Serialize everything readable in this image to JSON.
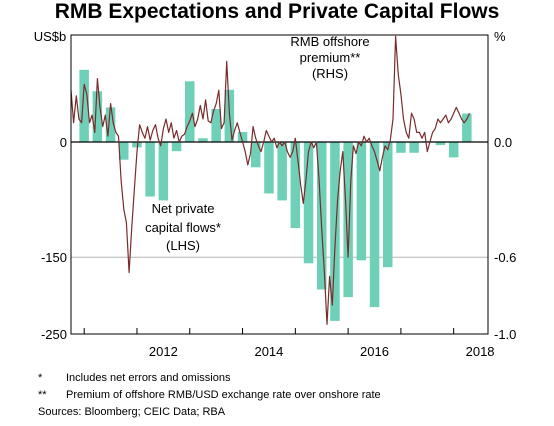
{
  "title": "RMB Expectations and Private Capital Flows",
  "colors": {
    "bars": "#6fd0b8",
    "line": "#7a2b2b",
    "axis": "#000000",
    "grid": "#b5b5b5",
    "annotation_line": "#7a2b2b",
    "annotation_bar": "#56c7ad"
  },
  "annotations": {
    "rmb_line1": "RMB offshore",
    "rmb_line2": "premium**",
    "rmb_line3": "(RHS)",
    "flows_line1": "Net private",
    "flows_line2": "capital flows*",
    "flows_line3": "(LHS)"
  },
  "footnotes": [
    {
      "mark": "*",
      "text": "Includes net errors and omissions"
    },
    {
      "mark": "**",
      "text": "Premium of offshore RMB/USD exchange rate over onshore rate"
    }
  ],
  "sources": "Sources:   Bloomberg; CEIC Data; RBA",
  "chart_data": {
    "type": "bar",
    "title": "RMB Expectations and Private Capital Flows",
    "left_axis": {
      "unit": "US$b",
      "ylim": [
        -250,
        100
      ],
      "ticks": [
        -250,
        -150,
        0
      ],
      "tick_labels": [
        "-250",
        "-150",
        "0"
      ]
    },
    "right_axis": {
      "unit": "%",
      "ylim": [
        -1.0,
        0.8
      ],
      "ticks": [
        -1.0,
        -0.6,
        0.0
      ],
      "tick_labels": [
        "-1.0",
        "-0.6",
        "0.0"
      ]
    },
    "x_axis": {
      "xlim": [
        2010.75,
        2018.65
      ],
      "ticks": [
        2012,
        2014,
        2016,
        2018
      ],
      "tick_labels": [
        "2012",
        "2014",
        "2016",
        "2018"
      ],
      "minor_ticks": [
        2011,
        2012,
        2013,
        2014,
        2015,
        2016,
        2017,
        2018
      ]
    },
    "gridlines": [
      -250,
      -150,
      0
    ],
    "series": [
      {
        "name": "Net private capital flows",
        "axis": "left",
        "kind": "bar",
        "x": [
          2011.0,
          2011.25,
          2011.5,
          2011.75,
          2012.0,
          2012.25,
          2012.5,
          2012.75,
          2013.0,
          2013.25,
          2013.5,
          2013.75,
          2014.0,
          2014.25,
          2014.5,
          2014.75,
          2015.0,
          2015.25,
          2015.5,
          2015.75,
          2016.0,
          2016.25,
          2016.5,
          2016.75,
          2017.0,
          2017.25,
          2017.5,
          2017.75,
          2018.0,
          2018.25
        ],
        "values": [
          94,
          66,
          45,
          -23,
          -7,
          -71,
          -76,
          -12,
          79,
          5,
          43,
          68,
          13,
          -33,
          -67,
          -76,
          -112,
          -158,
          -192,
          -233,
          -202,
          -154,
          -215,
          -163,
          -14,
          -14,
          1,
          -4,
          -20,
          37
        ]
      },
      {
        "name": "RMB offshore premium",
        "axis": "right",
        "kind": "line",
        "x": [
          2010.75,
          2010.8,
          2010.85,
          2010.9,
          2010.95,
          2011.0,
          2011.05,
          2011.1,
          2011.15,
          2011.2,
          2011.25,
          2011.3,
          2011.35,
          2011.4,
          2011.45,
          2011.5,
          2011.55,
          2011.6,
          2011.65,
          2011.7,
          2011.75,
          2011.8,
          2011.85,
          2011.9,
          2011.95,
          2012.0,
          2012.05,
          2012.1,
          2012.15,
          2012.2,
          2012.25,
          2012.3,
          2012.35,
          2012.4,
          2012.45,
          2012.5,
          2012.55,
          2012.6,
          2012.65,
          2012.7,
          2012.75,
          2012.8,
          2012.85,
          2012.9,
          2012.95,
          2013.0,
          2013.05,
          2013.1,
          2013.15,
          2013.2,
          2013.25,
          2013.3,
          2013.35,
          2013.4,
          2013.45,
          2013.5,
          2013.55,
          2013.6,
          2013.65,
          2013.7,
          2013.75,
          2013.8,
          2013.85,
          2013.9,
          2013.95,
          2014.0,
          2014.05,
          2014.1,
          2014.15,
          2014.2,
          2014.25,
          2014.3,
          2014.35,
          2014.4,
          2014.45,
          2014.5,
          2014.55,
          2014.6,
          2014.65,
          2014.7,
          2014.75,
          2014.8,
          2014.85,
          2014.9,
          2014.95,
          2015.0,
          2015.05,
          2015.1,
          2015.15,
          2015.2,
          2015.25,
          2015.3,
          2015.35,
          2015.4,
          2015.45,
          2015.5,
          2015.55,
          2015.6,
          2015.65,
          2015.7,
          2015.75,
          2015.8,
          2015.85,
          2015.9,
          2015.95,
          2016.0,
          2016.05,
          2016.1,
          2016.15,
          2016.2,
          2016.25,
          2016.3,
          2016.35,
          2016.4,
          2016.45,
          2016.5,
          2016.55,
          2016.6,
          2016.65,
          2016.7,
          2016.75,
          2016.8,
          2016.85,
          2016.9,
          2016.95,
          2017.0,
          2017.05,
          2017.1,
          2017.15,
          2017.2,
          2017.25,
          2017.3,
          2017.35,
          2017.4,
          2017.45,
          2017.5,
          2017.55,
          2017.6,
          2017.65,
          2017.7,
          2017.75,
          2017.8,
          2017.85,
          2017.9,
          2017.95,
          2018.0,
          2018.05,
          2018.1,
          2018.15,
          2018.2,
          2018.25,
          2018.3
        ],
        "values": [
          0.27,
          0.1,
          0.24,
          0.12,
          0.1,
          0.3,
          0.25,
          0.1,
          0.14,
          0.05,
          0.33,
          0.18,
          0.08,
          0.14,
          0.03,
          0.2,
          0.1,
          0.05,
          0.03,
          -0.2,
          -0.35,
          -0.42,
          -0.68,
          -0.45,
          -0.25,
          -0.05,
          0.09,
          0.05,
          0.02,
          0.08,
          0.01,
          0.06,
          0.09,
          0.02,
          -0.02,
          0.07,
          0.12,
          0.05,
          0.1,
          0.02,
          0.06,
          0.0,
          0.03,
          0.04,
          0.08,
          0.11,
          0.15,
          0.08,
          0.12,
          0.19,
          0.12,
          0.22,
          0.11,
          0.1,
          0.16,
          0.2,
          0.27,
          0.07,
          0.1,
          0.42,
          0.15,
          0.01,
          0.06,
          0.1,
          0.05,
          0.0,
          -0.05,
          -0.12,
          -0.06,
          0.08,
          0.02,
          -0.02,
          -0.05,
          0.0,
          0.06,
          0.03,
          0.0,
          0.02,
          -0.03,
          0.0,
          -0.02,
          0.0,
          -0.05,
          -0.08,
          -0.05,
          0.02,
          -0.1,
          -0.22,
          -0.32,
          -0.2,
          -0.05,
          0.0,
          -0.03,
          0.0,
          -0.2,
          -0.45,
          -0.68,
          -0.95,
          -0.7,
          -0.85,
          -0.55,
          -0.3,
          -0.15,
          -0.05,
          -0.3,
          -0.6,
          -0.2,
          -0.02,
          -0.06,
          0.0,
          -0.02,
          0.03,
          0.0,
          0.02,
          -0.02,
          -0.05,
          -0.1,
          -0.15,
          -0.08,
          -0.02,
          -0.04,
          0.01,
          0.12,
          0.55,
          0.35,
          0.25,
          0.12,
          0.05,
          0.02,
          0.15,
          0.12,
          0.05,
          0.05,
          0.02,
          0.05,
          -0.05,
          0.0,
          0.05,
          0.07,
          0.12,
          0.1,
          0.12,
          0.14,
          0.1,
          0.12,
          0.15,
          0.18,
          0.15,
          0.12,
          0.1,
          0.12,
          0.15
        ]
      }
    ]
  }
}
